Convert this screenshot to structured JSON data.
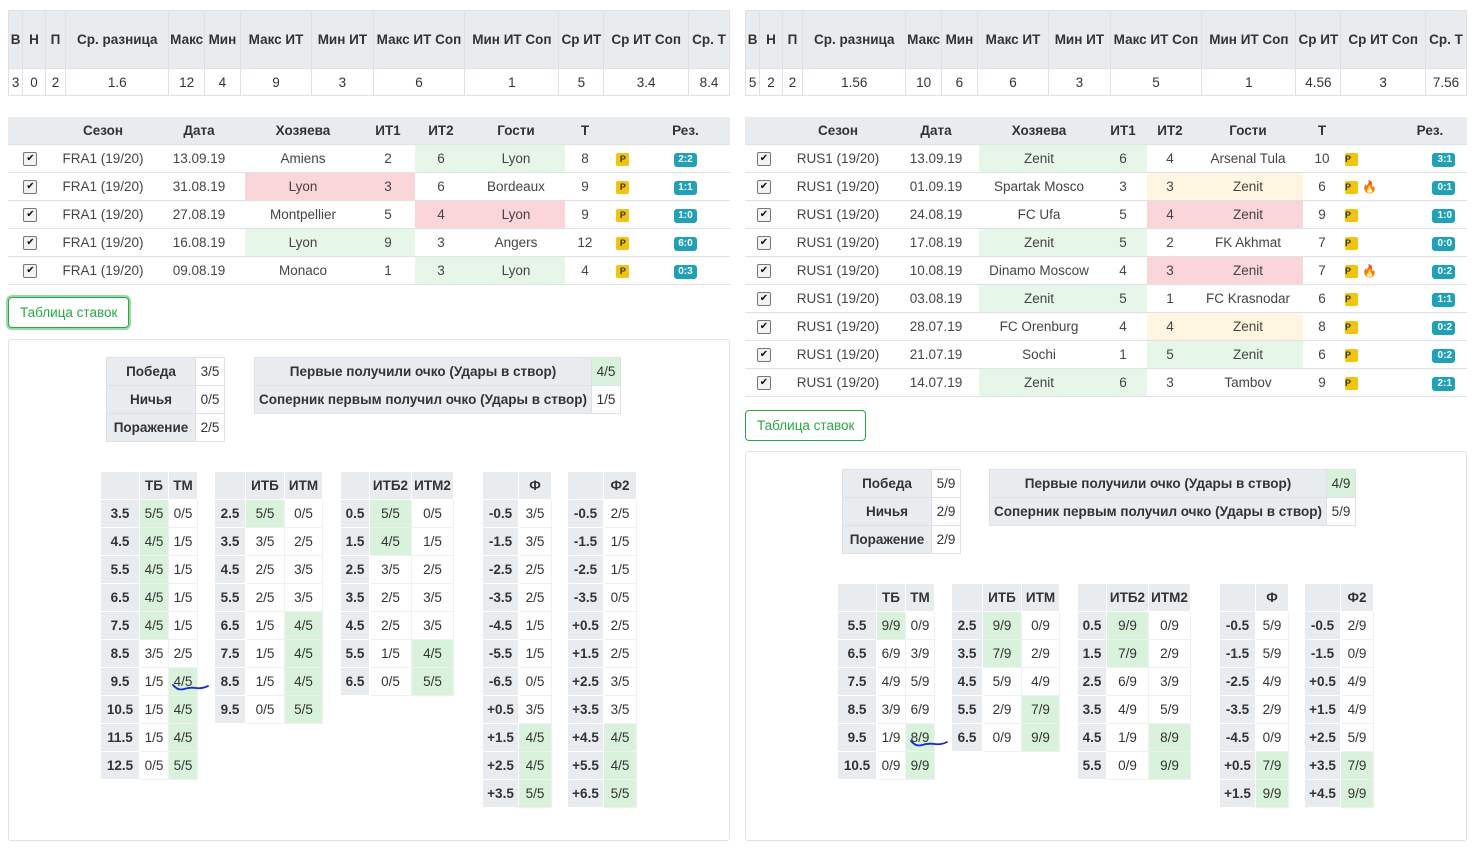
{
  "summary_headers": [
    "В",
    "Н",
    "П",
    "Ср. разница",
    "Макс",
    "Мин",
    "Макс ИТ",
    "Мин ИТ",
    "Макс ИТ Соп",
    "Мин ИТ Соп",
    "Ср ИТ",
    "Ср ИТ Соп",
    "Ср. Т"
  ],
  "match_headers": [
    "",
    "Сезон",
    "Дата",
    "Хозяева",
    "ИТ1",
    "ИТ2",
    "Гости",
    "Т",
    "",
    "Рез."
  ],
  "bets_button": "Таблица ставок",
  "stats_labels": {
    "win": "Победа",
    "draw": "Ничья",
    "loss": "Поражение",
    "first": "Первые получили очко (Удары в створ)",
    "opp_first": "Соперник первым получил очко (Удары в створ)"
  },
  "odds_headers": {
    "tb": "ТБ",
    "tm": "ТМ",
    "itb": "ИТБ",
    "itm": "ИТМ",
    "itb2": "ИТБ2",
    "itm2": "ИТМ2",
    "f": "Ф",
    "f2": "Ф2"
  },
  "left": {
    "summary": [
      "3",
      "0",
      "2",
      "1.6",
      "12",
      "4",
      "9",
      "3",
      "6",
      "1",
      "5",
      "3.4",
      "8.4"
    ],
    "matches": [
      {
        "season": "FRA1 (19/20)",
        "date": "13.09.19",
        "home": "Amiens",
        "it1": "2",
        "it2": "6",
        "away": "Lyon",
        "t": "8",
        "fire": "",
        "res": "2:2",
        "hl": "g-away"
      },
      {
        "season": "FRA1 (19/20)",
        "date": "31.08.19",
        "home": "Lyon",
        "it1": "3",
        "it2": "6",
        "away": "Bordeaux",
        "t": "9",
        "fire": "",
        "res": "1:1",
        "hl": "r-home"
      },
      {
        "season": "FRA1 (19/20)",
        "date": "27.08.19",
        "home": "Montpellier",
        "it1": "5",
        "it2": "4",
        "away": "Lyon",
        "t": "9",
        "fire": "",
        "res": "1:0",
        "hl": "r-away"
      },
      {
        "season": "FRA1 (19/20)",
        "date": "16.08.19",
        "home": "Lyon",
        "it1": "9",
        "it2": "3",
        "away": "Angers",
        "t": "12",
        "fire": "",
        "res": "6:0",
        "hl": "g-home"
      },
      {
        "season": "FRA1 (19/20)",
        "date": "09.08.19",
        "home": "Monaco",
        "it1": "1",
        "it2": "3",
        "away": "Lyon",
        "t": "4",
        "fire": "",
        "res": "0:3",
        "hl": "g-away"
      }
    ],
    "stats": {
      "win": "3/5",
      "draw": "0/5",
      "loss": "2/5",
      "first": "4/5",
      "opp_first": "1/5"
    },
    "tb_tm": [
      [
        "3.5",
        "5/5",
        "0/5"
      ],
      [
        "4.5",
        "4/5",
        "1/5"
      ],
      [
        "5.5",
        "4/5",
        "1/5"
      ],
      [
        "6.5",
        "4/5",
        "1/5"
      ],
      [
        "7.5",
        "4/5",
        "1/5"
      ],
      [
        "8.5",
        "3/5",
        "2/5"
      ],
      [
        "9.5",
        "1/5",
        "4/5"
      ],
      [
        "10.5",
        "1/5",
        "4/5"
      ],
      [
        "11.5",
        "1/5",
        "4/5"
      ],
      [
        "12.5",
        "0/5",
        "5/5"
      ]
    ],
    "itb_itm": [
      [
        "2.5",
        "5/5",
        "0/5"
      ],
      [
        "3.5",
        "3/5",
        "2/5"
      ],
      [
        "4.5",
        "2/5",
        "3/5"
      ],
      [
        "5.5",
        "2/5",
        "3/5"
      ],
      [
        "6.5",
        "1/5",
        "4/5"
      ],
      [
        "7.5",
        "1/5",
        "4/5"
      ],
      [
        "8.5",
        "1/5",
        "4/5"
      ],
      [
        "9.5",
        "0/5",
        "5/5"
      ]
    ],
    "itb2_itm2": [
      [
        "0.5",
        "5/5",
        "0/5"
      ],
      [
        "1.5",
        "4/5",
        "1/5"
      ],
      [
        "2.5",
        "3/5",
        "2/5"
      ],
      [
        "3.5",
        "2/5",
        "3/5"
      ],
      [
        "4.5",
        "2/5",
        "3/5"
      ],
      [
        "5.5",
        "1/5",
        "4/5"
      ],
      [
        "6.5",
        "0/5",
        "5/5"
      ]
    ],
    "f": [
      [
        "-0.5",
        "3/5"
      ],
      [
        "-1.5",
        "3/5"
      ],
      [
        "-2.5",
        "2/5"
      ],
      [
        "-3.5",
        "2/5"
      ],
      [
        "-4.5",
        "1/5"
      ],
      [
        "-5.5",
        "1/5"
      ],
      [
        "-6.5",
        "0/5"
      ],
      [
        "+0.5",
        "3/5"
      ],
      [
        "+1.5",
        "4/5"
      ],
      [
        "+2.5",
        "4/5"
      ],
      [
        "+3.5",
        "5/5"
      ]
    ],
    "f2": [
      [
        "-0.5",
        "2/5"
      ],
      [
        "-1.5",
        "1/5"
      ],
      [
        "-2.5",
        "1/5"
      ],
      [
        "-3.5",
        "0/5"
      ],
      [
        "+0.5",
        "2/5"
      ],
      [
        "+1.5",
        "2/5"
      ],
      [
        "+2.5",
        "3/5"
      ],
      [
        "+3.5",
        "3/5"
      ],
      [
        "+4.5",
        "4/5"
      ],
      [
        "+5.5",
        "4/5"
      ],
      [
        "+6.5",
        "5/5"
      ]
    ]
  },
  "right": {
    "summary": [
      "5",
      "2",
      "2",
      "1.56",
      "10",
      "6",
      "6",
      "3",
      "5",
      "1",
      "4.56",
      "3",
      "7.56"
    ],
    "matches": [
      {
        "season": "RUS1 (19/20)",
        "date": "13.09.19",
        "home": "Zenit",
        "it1": "6",
        "it2": "4",
        "away": "Arsenal Tula",
        "t": "10",
        "fire": "",
        "res": "3:1",
        "hl": "g-home"
      },
      {
        "season": "RUS1 (19/20)",
        "date": "01.09.19",
        "home": "Spartak Mosco",
        "it1": "3",
        "it2": "3",
        "away": "Zenit",
        "t": "6",
        "fire": "🔥",
        "res": "0:1",
        "hl": "y-away"
      },
      {
        "season": "RUS1 (19/20)",
        "date": "24.08.19",
        "home": "FC Ufa",
        "it1": "5",
        "it2": "4",
        "away": "Zenit",
        "t": "9",
        "fire": "",
        "res": "1:0",
        "hl": "r-away"
      },
      {
        "season": "RUS1 (19/20)",
        "date": "17.08.19",
        "home": "Zenit",
        "it1": "5",
        "it2": "2",
        "away": "FK Akhmat",
        "t": "7",
        "fire": "",
        "res": "0:0",
        "hl": "g-home"
      },
      {
        "season": "RUS1 (19/20)",
        "date": "10.08.19",
        "home": "Dinamo Moscow",
        "it1": "4",
        "it2": "3",
        "away": "Zenit",
        "t": "7",
        "fire": "🔥",
        "res": "0:2",
        "hl": "r-away"
      },
      {
        "season": "RUS1 (19/20)",
        "date": "03.08.19",
        "home": "Zenit",
        "it1": "5",
        "it2": "1",
        "away": "FC Krasnodar",
        "t": "6",
        "fire": "",
        "res": "1:1",
        "hl": "g-home"
      },
      {
        "season": "RUS1 (19/20)",
        "date": "28.07.19",
        "home": "FC Orenburg",
        "it1": "4",
        "it2": "4",
        "away": "Zenit",
        "t": "8",
        "fire": "",
        "res": "0:2",
        "hl": "y-away"
      },
      {
        "season": "RUS1 (19/20)",
        "date": "21.07.19",
        "home": "Sochi",
        "it1": "1",
        "it2": "5",
        "away": "Zenit",
        "t": "6",
        "fire": "",
        "res": "0:2",
        "hl": "g-away"
      },
      {
        "season": "RUS1 (19/20)",
        "date": "14.07.19",
        "home": "Zenit",
        "it1": "6",
        "it2": "3",
        "away": "Tambov",
        "t": "9",
        "fire": "",
        "res": "2:1",
        "hl": "g-home"
      }
    ],
    "stats": {
      "win": "5/9",
      "draw": "2/9",
      "loss": "2/9",
      "first": "4/9",
      "opp_first": "5/9"
    },
    "tb_tm": [
      [
        "5.5",
        "9/9",
        "0/9"
      ],
      [
        "6.5",
        "6/9",
        "3/9"
      ],
      [
        "7.5",
        "4/9",
        "5/9"
      ],
      [
        "8.5",
        "3/9",
        "6/9"
      ],
      [
        "9.5",
        "1/9",
        "8/9"
      ],
      [
        "10.5",
        "0/9",
        "9/9"
      ]
    ],
    "itb_itm": [
      [
        "2.5",
        "9/9",
        "0/9"
      ],
      [
        "3.5",
        "7/9",
        "2/9"
      ],
      [
        "4.5",
        "5/9",
        "4/9"
      ],
      [
        "5.5",
        "2/9",
        "7/9"
      ],
      [
        "6.5",
        "0/9",
        "9/9"
      ]
    ],
    "itb2_itm2": [
      [
        "0.5",
        "9/9",
        "0/9"
      ],
      [
        "1.5",
        "7/9",
        "2/9"
      ],
      [
        "2.5",
        "6/9",
        "3/9"
      ],
      [
        "3.5",
        "4/9",
        "5/9"
      ],
      [
        "4.5",
        "1/9",
        "8/9"
      ],
      [
        "5.5",
        "0/9",
        "9/9"
      ]
    ],
    "f": [
      [
        "-0.5",
        "5/9"
      ],
      [
        "-1.5",
        "5/9"
      ],
      [
        "-2.5",
        "4/9"
      ],
      [
        "-3.5",
        "2/9"
      ],
      [
        "-4.5",
        "0/9"
      ],
      [
        "+0.5",
        "7/9"
      ],
      [
        "+1.5",
        "9/9"
      ]
    ],
    "f2": [
      [
        "-0.5",
        "2/9"
      ],
      [
        "-1.5",
        "0/9"
      ],
      [
        "+0.5",
        "4/9"
      ],
      [
        "+1.5",
        "4/9"
      ],
      [
        "+2.5",
        "5/9"
      ],
      [
        "+3.5",
        "7/9"
      ],
      [
        "+4.5",
        "9/9"
      ]
    ]
  },
  "colors": {
    "positive": "#e6f7e9",
    "negative": "#fad6d9",
    "draw": "#fff6e2",
    "highlight": "#d9f2db",
    "result_badge": "#1fa2b8",
    "p_badge": "#f1c40f",
    "button": "#28a745",
    "pen": "#1a2cc8"
  },
  "icons": {
    "checkbox": "checkbox-checked-icon",
    "p": "p-badge-icon",
    "fire": "fire-icon"
  }
}
